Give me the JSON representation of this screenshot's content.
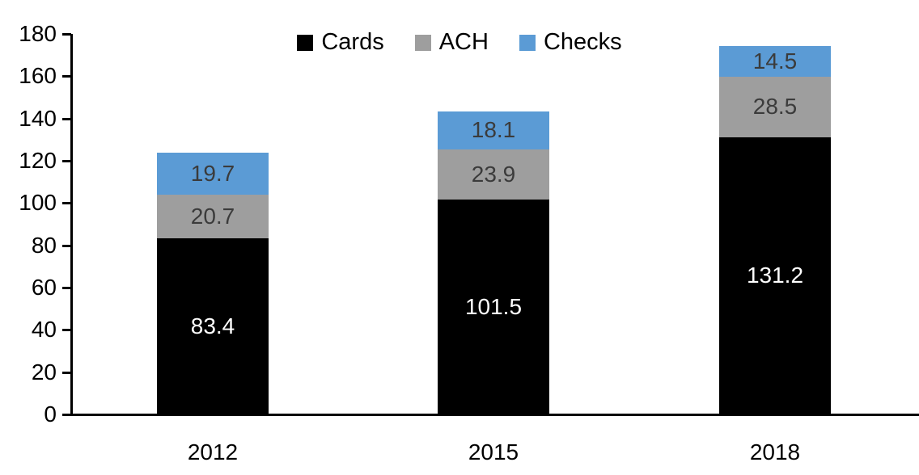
{
  "chart_data": {
    "type": "bar",
    "stacked": true,
    "title": "",
    "categories": [
      "2012",
      "2015",
      "2018"
    ],
    "series": [
      {
        "name": "Cards",
        "color": "#000000",
        "label_color": "#ffffff",
        "values": [
          83.4,
          101.5,
          131.2
        ]
      },
      {
        "name": "ACH",
        "color": "#9e9e9e",
        "label_color": "#3b3b3b",
        "values": [
          20.7,
          23.9,
          28.5
        ]
      },
      {
        "name": "Checks",
        "color": "#5b9bd5",
        "label_color": "#3b3b3b",
        "values": [
          19.7,
          18.1,
          14.5
        ]
      }
    ],
    "xlabel": "",
    "ylabel": "",
    "ylim": [
      0,
      180
    ],
    "ytick_step": 20,
    "yticks": [
      0,
      20,
      40,
      60,
      80,
      100,
      120,
      140,
      160,
      180
    ],
    "grid": false,
    "legend_position": "top",
    "data_labels": true,
    "axis_color": "#000000",
    "background": "#ffffff"
  }
}
